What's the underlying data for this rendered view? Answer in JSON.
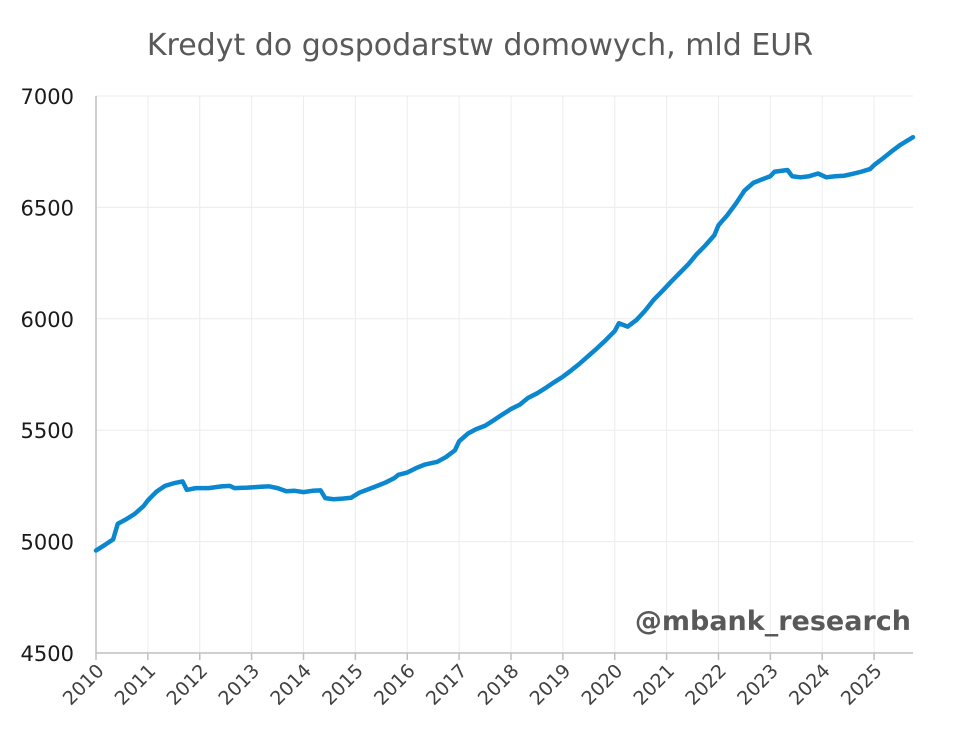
{
  "chart_data": {
    "type": "line",
    "title": "Kredyt do gospodarstw domowych, mld EUR",
    "xlabel": "",
    "ylabel": "",
    "ylim": [
      4500,
      7000
    ],
    "yticks": [
      4500,
      5000,
      5500,
      6000,
      6500,
      7000
    ],
    "xlim": [
      2010.0,
      2025.75
    ],
    "xticks": [
      "2010",
      "2011",
      "2012",
      "2013",
      "2014",
      "2015",
      "2016",
      "2017",
      "2018",
      "2019",
      "2020",
      "2021",
      "2022",
      "2023",
      "2024",
      "2025"
    ],
    "grid": true,
    "watermark": "@mbank_research",
    "series": [
      {
        "color": "#0a87cf",
        "points": [
          [
            2010.0,
            4960
          ],
          [
            2010.17,
            4985
          ],
          [
            2010.33,
            5010
          ],
          [
            2010.42,
            5080
          ],
          [
            2010.58,
            5100
          ],
          [
            2010.75,
            5125
          ],
          [
            2010.92,
            5160
          ],
          [
            2011.0,
            5185
          ],
          [
            2011.17,
            5225
          ],
          [
            2011.33,
            5250
          ],
          [
            2011.5,
            5262
          ],
          [
            2011.67,
            5270
          ],
          [
            2011.75,
            5232
          ],
          [
            2011.92,
            5240
          ],
          [
            2012.17,
            5240
          ],
          [
            2012.42,
            5248
          ],
          [
            2012.58,
            5250
          ],
          [
            2012.67,
            5240
          ],
          [
            2012.92,
            5242
          ],
          [
            2013.17,
            5246
          ],
          [
            2013.33,
            5248
          ],
          [
            2013.5,
            5240
          ],
          [
            2013.67,
            5226
          ],
          [
            2013.83,
            5228
          ],
          [
            2014.0,
            5222
          ],
          [
            2014.17,
            5228
          ],
          [
            2014.33,
            5230
          ],
          [
            2014.42,
            5195
          ],
          [
            2014.58,
            5190
          ],
          [
            2014.75,
            5193
          ],
          [
            2014.92,
            5197
          ],
          [
            2015.08,
            5220
          ],
          [
            2015.25,
            5235
          ],
          [
            2015.42,
            5250
          ],
          [
            2015.58,
            5265
          ],
          [
            2015.75,
            5285
          ],
          [
            2015.83,
            5300
          ],
          [
            2016.0,
            5310
          ],
          [
            2016.17,
            5330
          ],
          [
            2016.33,
            5345
          ],
          [
            2016.58,
            5358
          ],
          [
            2016.75,
            5380
          ],
          [
            2016.92,
            5410
          ],
          [
            2017.0,
            5450
          ],
          [
            2017.17,
            5485
          ],
          [
            2017.33,
            5505
          ],
          [
            2017.5,
            5520
          ],
          [
            2017.67,
            5545
          ],
          [
            2017.83,
            5570
          ],
          [
            2018.0,
            5595
          ],
          [
            2018.17,
            5615
          ],
          [
            2018.33,
            5645
          ],
          [
            2018.5,
            5665
          ],
          [
            2018.67,
            5690
          ],
          [
            2018.83,
            5715
          ],
          [
            2019.0,
            5740
          ],
          [
            2019.17,
            5770
          ],
          [
            2019.33,
            5800
          ],
          [
            2019.5,
            5835
          ],
          [
            2019.67,
            5870
          ],
          [
            2019.83,
            5905
          ],
          [
            2020.0,
            5945
          ],
          [
            2020.08,
            5980
          ],
          [
            2020.25,
            5965
          ],
          [
            2020.42,
            5995
          ],
          [
            2020.58,
            6035
          ],
          [
            2020.75,
            6085
          ],
          [
            2020.92,
            6125
          ],
          [
            2021.08,
            6165
          ],
          [
            2021.25,
            6205
          ],
          [
            2021.42,
            6245
          ],
          [
            2021.58,
            6290
          ],
          [
            2021.75,
            6330
          ],
          [
            2021.92,
            6375
          ],
          [
            2022.0,
            6420
          ],
          [
            2022.17,
            6465
          ],
          [
            2022.33,
            6515
          ],
          [
            2022.5,
            6575
          ],
          [
            2022.67,
            6610
          ],
          [
            2022.83,
            6625
          ],
          [
            2023.0,
            6640
          ],
          [
            2023.08,
            6660
          ],
          [
            2023.33,
            6668
          ],
          [
            2023.42,
            6640
          ],
          [
            2023.58,
            6635
          ],
          [
            2023.75,
            6640
          ],
          [
            2023.92,
            6652
          ],
          [
            2024.08,
            6635
          ],
          [
            2024.25,
            6640
          ],
          [
            2024.42,
            6642
          ],
          [
            2024.58,
            6650
          ],
          [
            2024.75,
            6660
          ],
          [
            2024.92,
            6672
          ],
          [
            2025.0,
            6690
          ],
          [
            2025.17,
            6720
          ],
          [
            2025.33,
            6750
          ],
          [
            2025.5,
            6780
          ],
          [
            2025.75,
            6815
          ]
        ]
      }
    ]
  }
}
